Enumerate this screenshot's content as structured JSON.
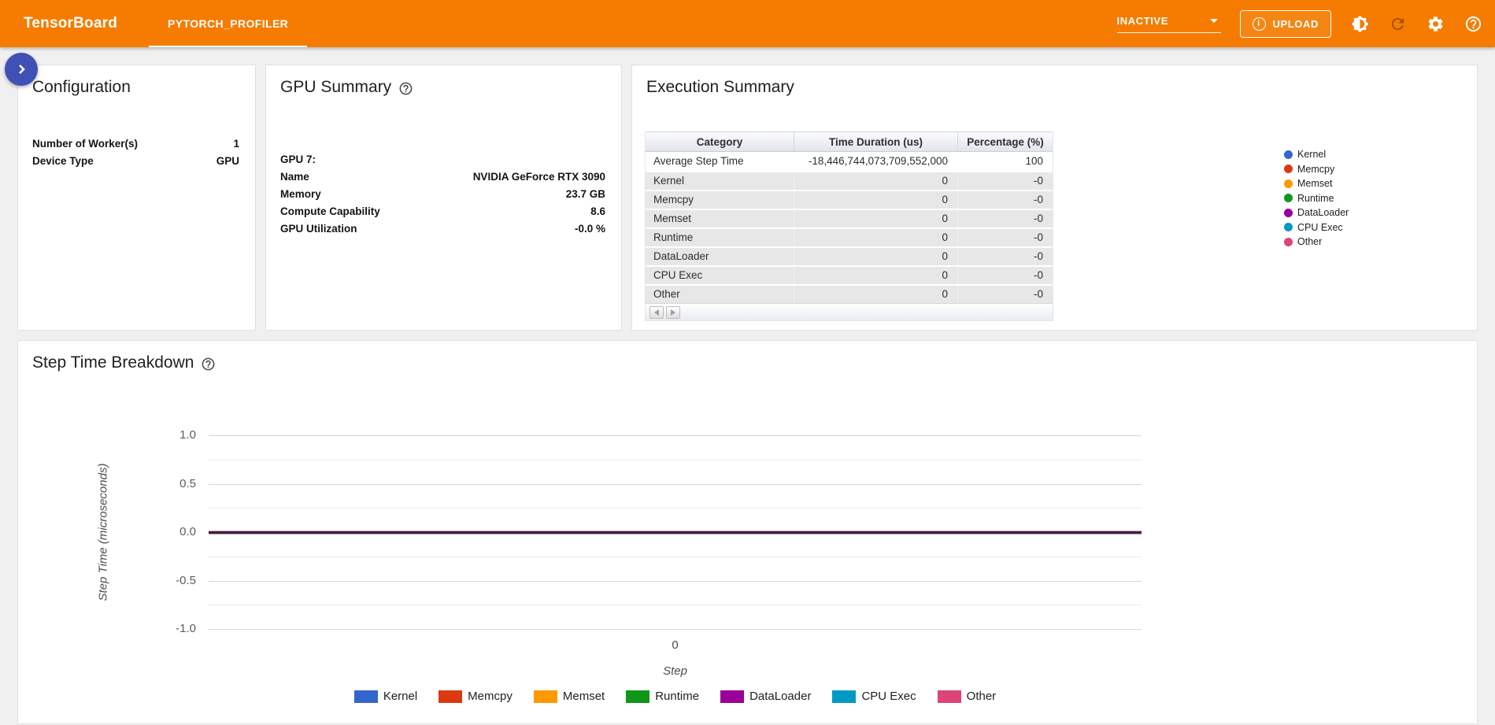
{
  "header": {
    "brand": "TensorBoard",
    "tab": "PYTORCH_PROFILER",
    "run_selector_value": "INACTIVE",
    "upload_label": "UPLOAD",
    "icons": [
      "info-icon",
      "brightness-icon",
      "refresh-icon",
      "settings-icon",
      "help-icon"
    ]
  },
  "panels": {
    "configuration": {
      "title": "Configuration",
      "rows": [
        {
          "label": "Number of Worker(s)",
          "value": "1"
        },
        {
          "label": "Device Type",
          "value": "GPU"
        }
      ]
    },
    "gpu_summary": {
      "title": "GPU Summary",
      "rows": [
        {
          "label": "GPU 7:",
          "value": ""
        },
        {
          "label": "Name",
          "value": "NVIDIA GeForce RTX 3090"
        },
        {
          "label": "Memory",
          "value": "23.7 GB"
        },
        {
          "label": "Compute Capability",
          "value": "8.6"
        },
        {
          "label": "GPU Utilization",
          "value": "-0.0 %"
        }
      ]
    },
    "execution_summary": {
      "title": "Execution Summary",
      "table": {
        "headers": [
          "Category",
          "Time Duration (us)",
          "Percentage (%)"
        ],
        "rows": [
          [
            "Average Step Time",
            "-18,446,744,073,709,552,000",
            "100"
          ],
          [
            "Kernel",
            "0",
            "-0"
          ],
          [
            "Memcpy",
            "0",
            "-0"
          ],
          [
            "Memset",
            "0",
            "-0"
          ],
          [
            "Runtime",
            "0",
            "-0"
          ],
          [
            "DataLoader",
            "0",
            "-0"
          ],
          [
            "CPU Exec",
            "0",
            "-0"
          ],
          [
            "Other",
            "0",
            "-0"
          ]
        ]
      }
    },
    "step_time_breakdown": {
      "title": "Step Time Breakdown"
    }
  },
  "colors": {
    "header_orange": "#f57c00",
    "fab_blue": "#3f51b5",
    "zero_line": "#3e203e"
  },
  "chart_data": [
    {
      "type": "pie",
      "title": "Execution Summary category breakdown",
      "labels": [
        "Kernel",
        "Memcpy",
        "Memset",
        "Runtime",
        "DataLoader",
        "CPU Exec",
        "Other"
      ],
      "values": [
        0,
        0,
        0,
        0,
        0,
        0,
        0
      ],
      "colors": [
        "#3366cc",
        "#dc3912",
        "#ff9900",
        "#109618",
        "#990099",
        "#0099c6",
        "#dd4477"
      ],
      "legend_position": "right"
    },
    {
      "type": "area",
      "title": "Step Time Breakdown",
      "x": [
        0
      ],
      "series": [
        {
          "name": "Kernel",
          "color": "#3366cc",
          "values": [
            0
          ]
        },
        {
          "name": "Memcpy",
          "color": "#dc3912",
          "values": [
            0
          ]
        },
        {
          "name": "Memset",
          "color": "#ff9900",
          "values": [
            0
          ]
        },
        {
          "name": "Runtime",
          "color": "#109618",
          "values": [
            0
          ]
        },
        {
          "name": "DataLoader",
          "color": "#990099",
          "values": [
            0
          ]
        },
        {
          "name": "CPU Exec",
          "color": "#0099c6",
          "values": [
            0
          ]
        },
        {
          "name": "Other",
          "color": "#dd4477",
          "values": [
            0
          ]
        }
      ],
      "xlabel": "Step",
      "ylabel": "Step Time (microseconds)",
      "ylim": [
        -1.0,
        1.0
      ],
      "yticks": [
        "1.0",
        "0.5",
        "0.0",
        "-0.5",
        "-1.0"
      ],
      "minor_tick_step": 0.25,
      "xticks": [
        "0"
      ],
      "grid": true,
      "legend_position": "bottom"
    }
  ]
}
